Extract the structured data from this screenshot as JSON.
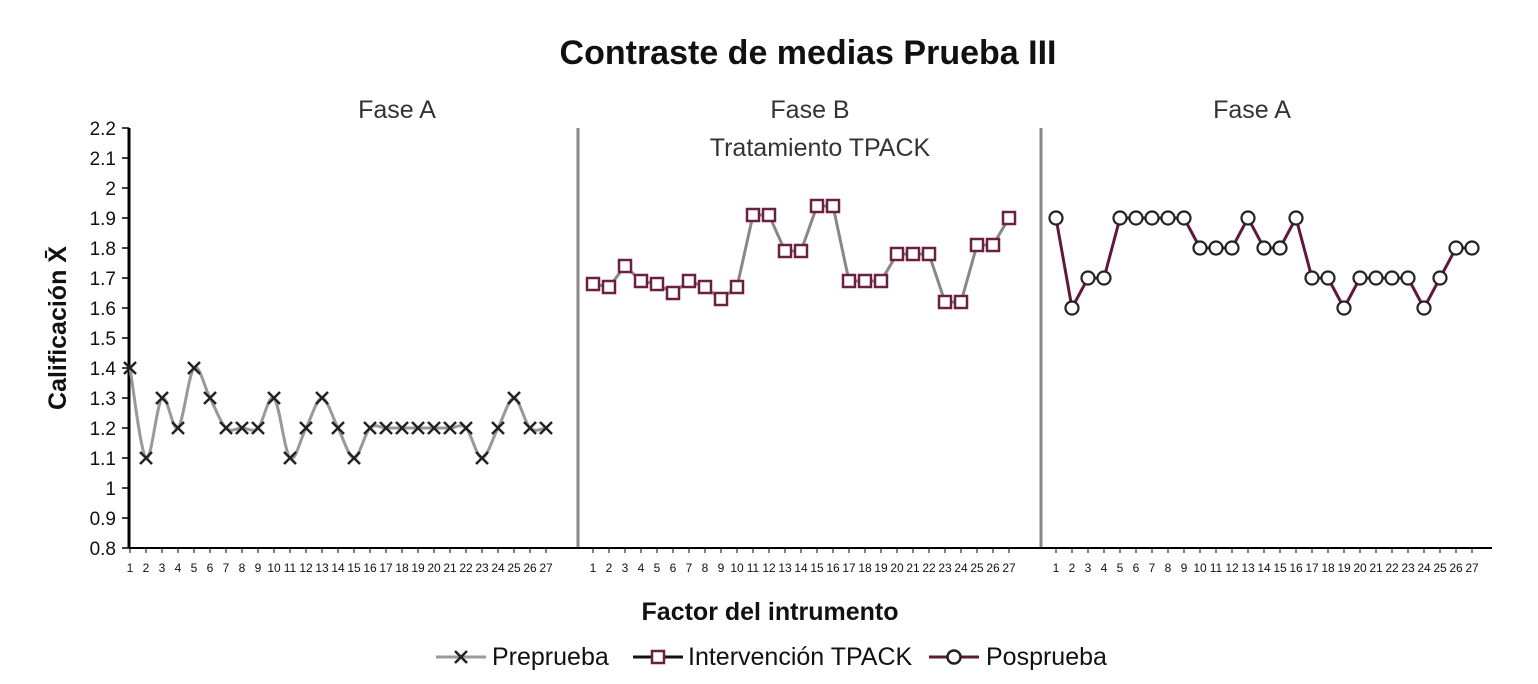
{
  "chart_data": {
    "type": "line",
    "title": "Contraste de medias Prueba III",
    "xlabel": "Factor del intrumento",
    "ylabel": "Calificación X̄",
    "ylim": [
      0.8,
      2.2
    ],
    "yticks": [
      "0.8",
      "0.9",
      "1",
      "1.1",
      "1.2",
      "1.3",
      "1.4",
      "1.5",
      "1.6",
      "1.7",
      "1.8",
      "1.9",
      "2",
      "2.1",
      "2.2"
    ],
    "x": [
      1,
      2,
      3,
      4,
      5,
      6,
      7,
      8,
      9,
      10,
      11,
      12,
      13,
      14,
      15,
      16,
      17,
      18,
      19,
      20,
      21,
      22,
      23,
      24,
      25,
      26,
      27
    ],
    "phases": [
      {
        "label": "Fase A",
        "sublabel": ""
      },
      {
        "label": "Fase B",
        "sublabel": "Tratamiento TPACK"
      },
      {
        "label": "Fase A",
        "sublabel": ""
      }
    ],
    "series": [
      {
        "name": "Preprueba",
        "marker": "x",
        "line_color": "#999999",
        "marker_color": "#222222",
        "values": [
          1.4,
          1.1,
          1.3,
          1.2,
          1.4,
          1.3,
          1.2,
          1.2,
          1.2,
          1.3,
          1.1,
          1.2,
          1.3,
          1.2,
          1.1,
          1.2,
          1.2,
          1.2,
          1.2,
          1.2,
          1.2,
          1.2,
          1.1,
          1.2,
          1.3,
          1.2,
          1.2
        ]
      },
      {
        "name": "Intervención TPACK",
        "marker": "square",
        "line_color": "#888888",
        "marker_color": "#6b2040",
        "values": [
          1.68,
          1.67,
          1.74,
          1.69,
          1.68,
          1.65,
          1.69,
          1.67,
          1.63,
          1.67,
          1.91,
          1.91,
          1.79,
          1.79,
          1.94,
          1.94,
          1.69,
          1.69,
          1.69,
          1.78,
          1.78,
          1.78,
          1.62,
          1.62,
          1.81,
          1.81,
          1.9
        ]
      },
      {
        "name": "Posprueba",
        "marker": "circle",
        "line_color": "#5e1a38",
        "marker_color": "#5e1a38",
        "values": [
          1.9,
          1.6,
          1.7,
          1.7,
          1.9,
          1.9,
          1.9,
          1.9,
          1.9,
          1.8,
          1.8,
          1.8,
          1.9,
          1.8,
          1.8,
          1.9,
          1.7,
          1.7,
          1.6,
          1.7,
          1.7,
          1.7,
          1.7,
          1.6,
          1.7,
          1.8,
          1.8
        ]
      }
    ],
    "legend_position": "bottom",
    "grid": false
  }
}
